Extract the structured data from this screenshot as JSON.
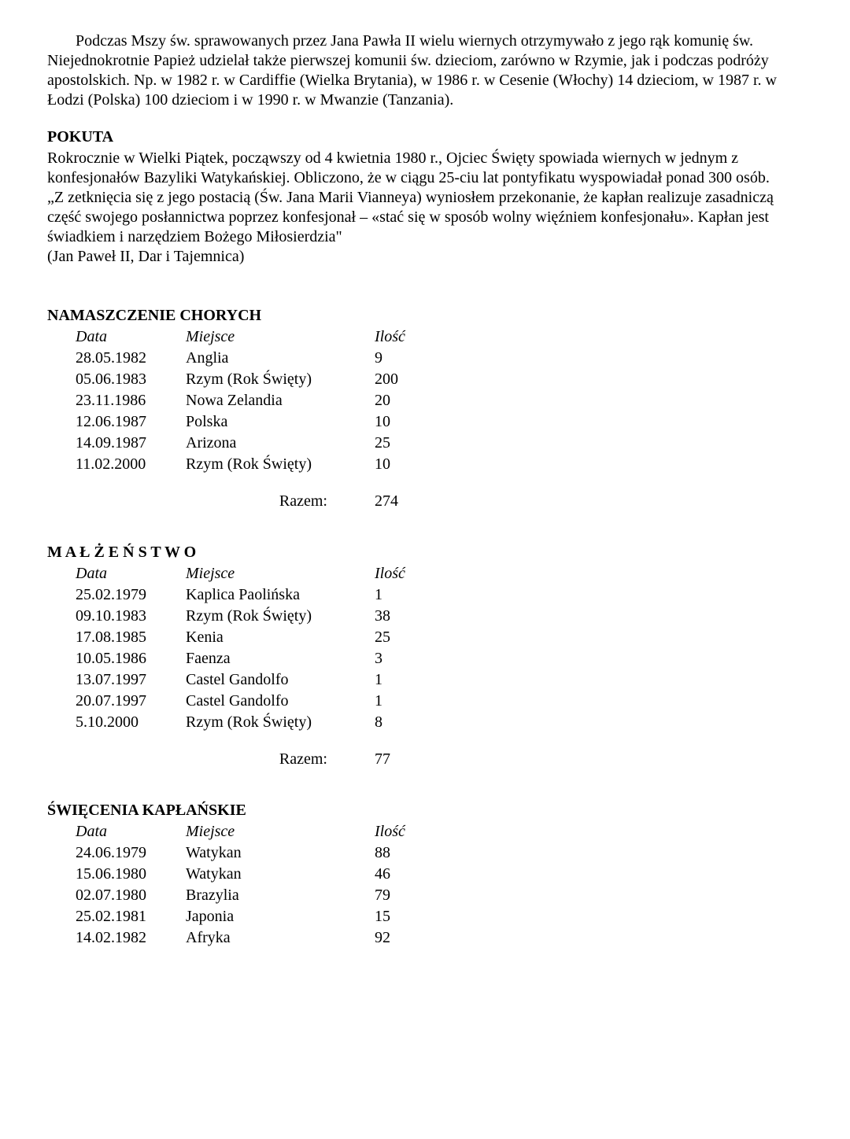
{
  "paragraph1": "Podczas Mszy św. sprawowanych przez Jana Pawła II wielu wiernych otrzymywało z jego rąk komunię św. Niejednokrotnie Papież udzielał także pierwszej komunii św. dzieciom, zarówno w Rzymie, jak i podczas podróży apostolskich. Np. w 1982 r. w Cardiffie (Wielka Brytania), w 1986 r. w Cesenie (Włochy) 14 dzieciom, w 1987 r. w Łodzi (Polska) 100 dzieciom i w 1990 r. w Mwanzie (Tanzania).",
  "pokuta": {
    "title": "POKUTA",
    "body": "Rokrocznie w Wielki Piątek, począwszy od 4 kwietnia 1980 r., Ojciec Święty spowiada wiernych w jednym z konfesjonałów Bazyliki Watykańskiej. Obliczono, że w ciągu 25-ciu lat pontyfikatu wyspowiadał ponad 300 osób.",
    "quote": "„Z zetknięcia się z jego postacią (Św. Jana Marii Vianneya) wyniosłem przekonanie, że kapłan realizuje zasadniczą część swojego posłannictwa poprzez konfesjonał – «stać się w sposób wolny więźniem konfesjonału». Kapłan jest świadkiem i narzędziem Bożego Miłosierdzia\"",
    "citation": "(Jan Paweł II, Dar i Tajemnica)"
  },
  "headers": {
    "date": "Data",
    "place": "Miejsce",
    "count": "Ilość",
    "total": "Razem:"
  },
  "namaszczenie": {
    "title": "NAMASZCZENIE CHORYCH",
    "rows": [
      {
        "date": "28.05.1982",
        "place": "Anglia",
        "count": "9"
      },
      {
        "date": "05.06.1983",
        "place": "Rzym (Rok Święty)",
        "count": "200"
      },
      {
        "date": "23.11.1986",
        "place": "Nowa Zelandia",
        "count": "20"
      },
      {
        "date": "12.06.1987",
        "place": "Polska",
        "count": "10"
      },
      {
        "date": "14.09.1987",
        "place": "Arizona",
        "count": "25"
      },
      {
        "date": "11.02.2000",
        "place": "Rzym (Rok Święty)",
        "count": "10"
      }
    ],
    "total": "274"
  },
  "malzenstwo": {
    "title": "M A Ł Ż E Ń S T W O",
    "rows": [
      {
        "date": "25.02.1979",
        "place": "Kaplica Paolińska",
        "count": "1"
      },
      {
        "date": "09.10.1983",
        "place": "Rzym (Rok Święty)",
        "count": "38"
      },
      {
        "date": "17.08.1985",
        "place": "Kenia",
        "count": "25"
      },
      {
        "date": "10.05.1986",
        "place": "Faenza",
        "count": "3"
      },
      {
        "date": "13.07.1997",
        "place": "Castel Gandolfo",
        "count": "1"
      },
      {
        "date": "20.07.1997",
        "place": "Castel Gandolfo",
        "count": "1"
      },
      {
        "date": "5.10.2000",
        "place": "Rzym (Rok Święty)",
        "count": "8"
      }
    ],
    "total": "77"
  },
  "swiecenia": {
    "title": "ŚWIĘCENIA KAPŁAŃSKIE",
    "rows": [
      {
        "date": "24.06.1979",
        "place": "Watykan",
        "count": "88"
      },
      {
        "date": "15.06.1980",
        "place": "Watykan",
        "count": "46"
      },
      {
        "date": "02.07.1980",
        "place": "Brazylia",
        "count": "79"
      },
      {
        "date": "25.02.1981",
        "place": "Japonia",
        "count": "15"
      },
      {
        "date": "14.02.1982",
        "place": "Afryka",
        "count": "92"
      }
    ]
  }
}
